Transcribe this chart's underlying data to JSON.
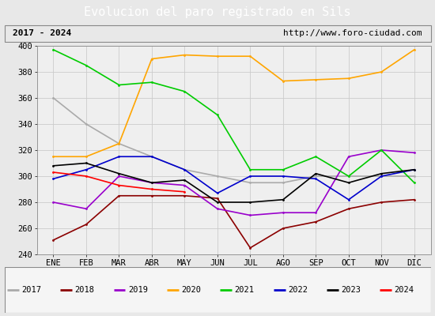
{
  "title": "Evolucion del paro registrado en Sils",
  "subtitle_left": "2017 - 2024",
  "subtitle_right": "http://www.foro-ciudad.com",
  "months": [
    "ENE",
    "FEB",
    "MAR",
    "ABR",
    "MAY",
    "JUN",
    "JUL",
    "AGO",
    "SEP",
    "OCT",
    "NOV",
    "DIC"
  ],
  "ylim": [
    240,
    400
  ],
  "yticks": [
    240,
    260,
    280,
    300,
    320,
    340,
    360,
    380,
    400
  ],
  "series": {
    "2017": {
      "values": [
        360,
        340,
        325,
        315,
        305,
        300,
        295,
        295,
        300,
        300,
        300,
        300
      ],
      "color": "#aaaaaa",
      "linewidth": 1.2
    },
    "2018": {
      "values": [
        251,
        263,
        285,
        285,
        285,
        283,
        245,
        260,
        265,
        275,
        280,
        282
      ],
      "color": "#8B0000",
      "linewidth": 1.2
    },
    "2019": {
      "values": [
        280,
        275,
        300,
        295,
        293,
        275,
        270,
        272,
        272,
        315,
        320,
        318
      ],
      "color": "#9900cc",
      "linewidth": 1.2
    },
    "2020": {
      "values": [
        315,
        315,
        325,
        390,
        393,
        392,
        392,
        373,
        374,
        375,
        380,
        397
      ],
      "color": "#FFA500",
      "linewidth": 1.2
    },
    "2021": {
      "values": [
        397,
        385,
        370,
        372,
        365,
        347,
        305,
        305,
        315,
        300,
        320,
        295
      ],
      "color": "#00cc00",
      "linewidth": 1.2
    },
    "2022": {
      "values": [
        298,
        305,
        315,
        315,
        305,
        287,
        300,
        300,
        298,
        282,
        300,
        305
      ],
      "color": "#0000cc",
      "linewidth": 1.2
    },
    "2023": {
      "values": [
        308,
        310,
        302,
        295,
        297,
        280,
        280,
        282,
        302,
        295,
        302,
        305
      ],
      "color": "#000000",
      "linewidth": 1.2
    },
    "2024": {
      "values": [
        303,
        300,
        293,
        290,
        288,
        null,
        null,
        null,
        null,
        null,
        null,
        null
      ],
      "color": "#ff0000",
      "linewidth": 1.2
    }
  },
  "background_color": "#e8e8e8",
  "plot_bg_color": "#efefef",
  "title_bg_color": "#4169b0",
  "title_color": "#ffffff",
  "grid_color": "#cccccc",
  "legend_years": [
    "2017",
    "2018",
    "2019",
    "2020",
    "2021",
    "2022",
    "2023",
    "2024"
  ],
  "legend_colors": [
    "#aaaaaa",
    "#8B0000",
    "#9900cc",
    "#FFA500",
    "#00cc00",
    "#0000cc",
    "#000000",
    "#ff0000"
  ]
}
